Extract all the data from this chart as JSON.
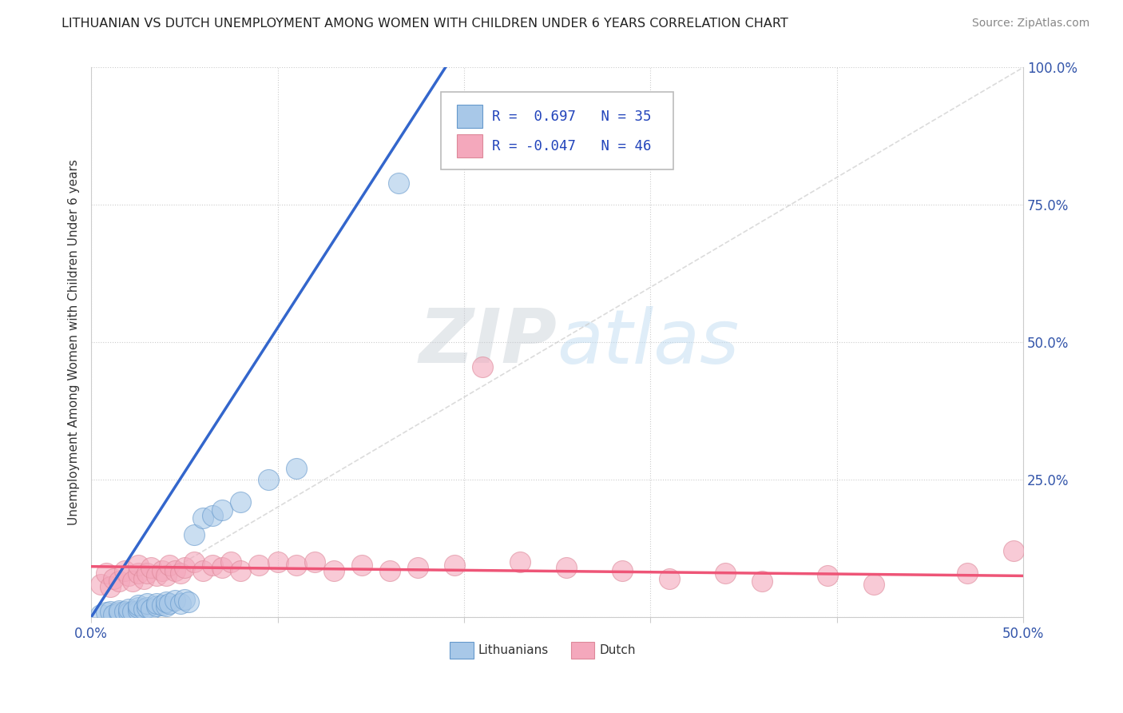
{
  "title": "LITHUANIAN VS DUTCH UNEMPLOYMENT AMONG WOMEN WITH CHILDREN UNDER 6 YEARS CORRELATION CHART",
  "source": "Source: ZipAtlas.com",
  "ylabel": "Unemployment Among Women with Children Under 6 years",
  "xlim": [
    0.0,
    0.5
  ],
  "ylim": [
    0.0,
    1.0
  ],
  "xticks": [
    0.0,
    0.1,
    0.2,
    0.3,
    0.4,
    0.5
  ],
  "xticklabels": [
    "0.0%",
    "",
    "",
    "",
    "",
    "50.0%"
  ],
  "yticks": [
    0.0,
    0.25,
    0.5,
    0.75,
    1.0
  ],
  "yticklabels": [
    "",
    "25.0%",
    "50.0%",
    "75.0%",
    "100.0%"
  ],
  "blue_color": "#A8C8E8",
  "pink_color": "#F4A8BC",
  "blue_edge_color": "#6699CC",
  "pink_edge_color": "#DD8899",
  "blue_line_color": "#3366CC",
  "pink_line_color": "#EE5577",
  "diag_color": "#CCCCCC",
  "watermark_color": "#D8EAF5",
  "blue_scatter_x": [
    0.005,
    0.008,
    0.01,
    0.012,
    0.015,
    0.015,
    0.018,
    0.02,
    0.02,
    0.022,
    0.025,
    0.025,
    0.025,
    0.028,
    0.03,
    0.03,
    0.032,
    0.035,
    0.035,
    0.038,
    0.04,
    0.04,
    0.042,
    0.045,
    0.048,
    0.05,
    0.052,
    0.055,
    0.06,
    0.065,
    0.07,
    0.08,
    0.095,
    0.11,
    0.165
  ],
  "blue_scatter_y": [
    0.005,
    0.008,
    0.01,
    0.005,
    0.008,
    0.012,
    0.01,
    0.008,
    0.015,
    0.01,
    0.012,
    0.018,
    0.022,
    0.015,
    0.018,
    0.025,
    0.015,
    0.02,
    0.025,
    0.022,
    0.02,
    0.028,
    0.025,
    0.03,
    0.025,
    0.032,
    0.028,
    0.15,
    0.18,
    0.185,
    0.195,
    0.21,
    0.25,
    0.27,
    0.79
  ],
  "pink_scatter_x": [
    0.005,
    0.008,
    0.01,
    0.012,
    0.015,
    0.018,
    0.02,
    0.022,
    0.025,
    0.025,
    0.028,
    0.03,
    0.032,
    0.035,
    0.038,
    0.04,
    0.042,
    0.045,
    0.048,
    0.05,
    0.055,
    0.06,
    0.065,
    0.07,
    0.075,
    0.08,
    0.09,
    0.1,
    0.11,
    0.12,
    0.13,
    0.145,
    0.16,
    0.175,
    0.195,
    0.21,
    0.23,
    0.255,
    0.285,
    0.31,
    0.34,
    0.36,
    0.395,
    0.42,
    0.47,
    0.495
  ],
  "pink_scatter_y": [
    0.06,
    0.08,
    0.055,
    0.07,
    0.065,
    0.085,
    0.075,
    0.065,
    0.08,
    0.095,
    0.07,
    0.08,
    0.09,
    0.075,
    0.085,
    0.075,
    0.095,
    0.085,
    0.08,
    0.09,
    0.1,
    0.085,
    0.095,
    0.09,
    0.1,
    0.085,
    0.095,
    0.1,
    0.095,
    0.1,
    0.085,
    0.095,
    0.085,
    0.09,
    0.095,
    0.455,
    0.1,
    0.09,
    0.085,
    0.07,
    0.08,
    0.065,
    0.075,
    0.06,
    0.08,
    0.12
  ],
  "blue_line_x": [
    0.0,
    0.19
  ],
  "blue_line_y": [
    0.0,
    1.0
  ],
  "pink_line_x": [
    0.0,
    0.5
  ],
  "pink_line_y": [
    0.092,
    0.075
  ],
  "diag_line_x": [
    0.04,
    0.5
  ],
  "diag_line_y": [
    0.08,
    1.0
  ]
}
